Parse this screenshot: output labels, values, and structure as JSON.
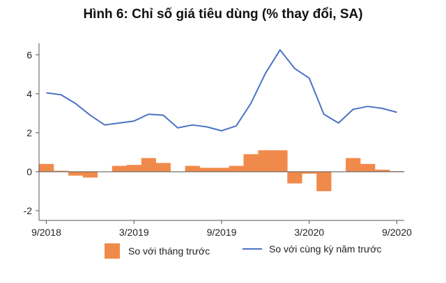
{
  "title": "Hình 6: Chỉ số giá tiêu dùng (% thay đổi, SA)",
  "chart_data": {
    "type": "bar",
    "title": "Hình 6: Chỉ số giá tiêu dùng (% thay đổi, SA)",
    "x": [
      "2018-09",
      "2018-10",
      "2018-11",
      "2018-12",
      "2019-01",
      "2019-02",
      "2019-03",
      "2019-04",
      "2019-05",
      "2019-06",
      "2019-07",
      "2019-08",
      "2019-09",
      "2019-10",
      "2019-11",
      "2019-12",
      "2020-01",
      "2020-02",
      "2020-03",
      "2020-04",
      "2020-05",
      "2020-06",
      "2020-07",
      "2020-08",
      "2020-09"
    ],
    "x_tick_labels": [
      "9/2018",
      "3/2019",
      "9/2019",
      "3/2020",
      "9/2020"
    ],
    "x_tick_values": [
      "2018-09",
      "2019-03",
      "2019-09",
      "2020-03",
      "2020-09"
    ],
    "ylim": [
      -2.5,
      6.6
    ],
    "y_ticks": [
      -2,
      0,
      2,
      4,
      6
    ],
    "grid": false,
    "legend_position": "bottom",
    "series": [
      {
        "name": "So với tháng trước",
        "type": "bar",
        "color": "#f08a4b",
        "values": [
          0.4,
          0.05,
          -0.2,
          -0.3,
          0.0,
          0.3,
          0.35,
          0.7,
          0.45,
          0.0,
          0.3,
          0.2,
          0.2,
          0.3,
          0.9,
          1.1,
          1.1,
          -0.6,
          -0.1,
          -1.0,
          0.0,
          0.7,
          0.4,
          0.1,
          0.03
        ]
      },
      {
        "name": "So với cùng kỳ năm trước",
        "type": "line",
        "color": "#4a72c4",
        "values": [
          4.05,
          3.95,
          3.5,
          2.9,
          2.4,
          2.5,
          2.6,
          2.95,
          2.9,
          2.25,
          2.4,
          2.3,
          2.1,
          2.35,
          3.5,
          5.05,
          6.25,
          5.3,
          4.8,
          2.95,
          2.5,
          3.2,
          3.35,
          3.25,
          3.05
        ]
      }
    ]
  }
}
